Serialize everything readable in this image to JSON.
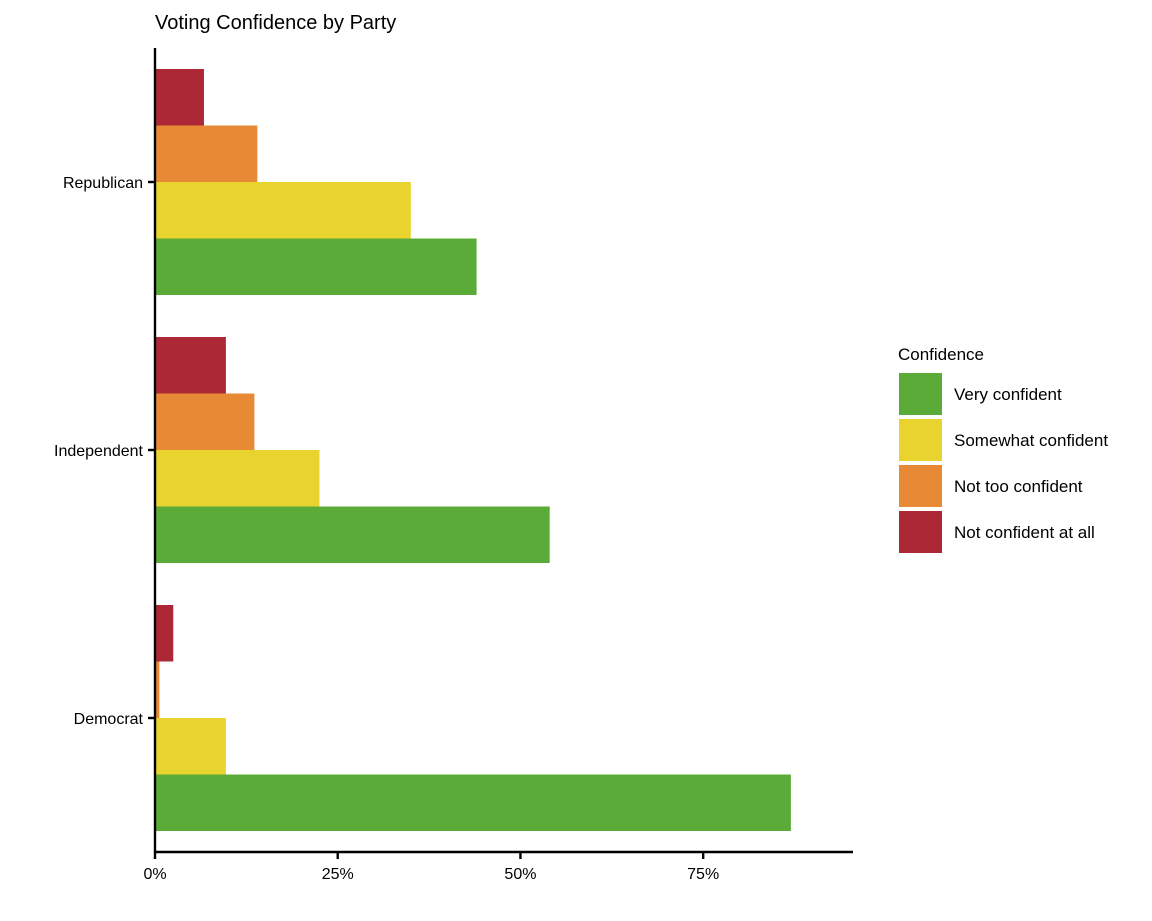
{
  "chart_data": {
    "type": "bar",
    "orientation": "horizontal",
    "title": "Voting Confidence by Party",
    "xlabel": "",
    "ylabel": "",
    "xlim": [
      0,
      95.5
    ],
    "x_ticks": [
      0,
      25,
      50,
      75
    ],
    "x_tick_labels": [
      "0%",
      "25%",
      "50%",
      "75%"
    ],
    "categories": [
      "Republican",
      "Independent",
      "Democrat"
    ],
    "legend": {
      "title": "Confidence",
      "placement": "right"
    },
    "series": [
      {
        "name": "Very confident",
        "color": "#5aab38",
        "values": [
          44,
          54,
          87
        ]
      },
      {
        "name": "Somewhat confident",
        "color": "#e8d32f",
        "values": [
          35,
          22.5,
          9.7
        ]
      },
      {
        "name": "Not too confident",
        "color": "#e88a35",
        "values": [
          14,
          13.6,
          0.6
        ]
      },
      {
        "name": "Not confident at all",
        "color": "#ad2837",
        "values": [
          6.7,
          9.7,
          2.5
        ]
      }
    ],
    "grid": false
  }
}
